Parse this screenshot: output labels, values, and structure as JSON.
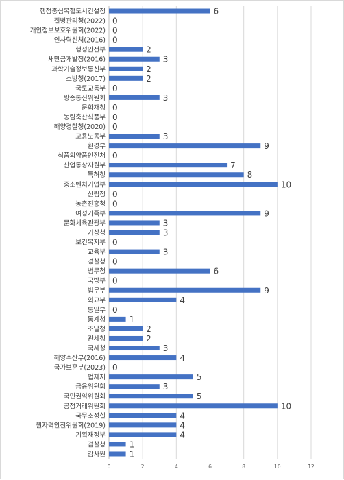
{
  "chart_data": {
    "type": "bar",
    "orientation": "horizontal",
    "title": "",
    "xlabel": "",
    "ylabel": "",
    "xlim": [
      0,
      12
    ],
    "x_ticks": [
      "0",
      "2",
      "4",
      "6",
      "8",
      "10",
      "12"
    ],
    "grid": true,
    "bar_color": "#4472c4",
    "categories": [
      "행정중심복합도시건설청",
      "질병관리청(2022)",
      "개인정보보호위원회(2022)",
      "인사혁신처(2016)",
      "행정안전부",
      "새만금개발청(2016)",
      "과학기술정보통신부",
      "소방청(2017)",
      "국토교통부",
      "방송통신위원회",
      "문화재청",
      "농림축산식품부",
      "해양경찰청(2020)",
      "고용노동부",
      "환경부",
      "식품의약품안전처",
      "산업통상자원부",
      "특허청",
      "중소벤처기업부",
      "산림청",
      "농촌진흥청",
      "여성가족부",
      "문화체육관광부",
      "기상청",
      "보건복지부",
      "교육부",
      "경찰청",
      "병무청",
      "국방부",
      "법무부",
      "외교부",
      "통일부",
      "통계청",
      "조달청",
      "관세청",
      "국세청",
      "해양수산부(2016)",
      "국가보훈부(2023)",
      "법제처",
      "금융위원회",
      "국민권익위원회",
      "공정거래위원회",
      "국무조정실",
      "원자력안전위원회(2019)",
      "기획재정부",
      "검찰청",
      "감사원"
    ],
    "values": [
      6,
      0,
      0,
      0,
      2,
      3,
      2,
      2,
      0,
      3,
      0,
      0,
      0,
      3,
      9,
      0,
      7,
      8,
      10,
      0,
      0,
      9,
      3,
      3,
      0,
      3,
      0,
      6,
      0,
      9,
      4,
      0,
      1,
      2,
      2,
      3,
      4,
      0,
      5,
      3,
      5,
      10,
      4,
      4,
      4,
      1,
      1
    ]
  }
}
